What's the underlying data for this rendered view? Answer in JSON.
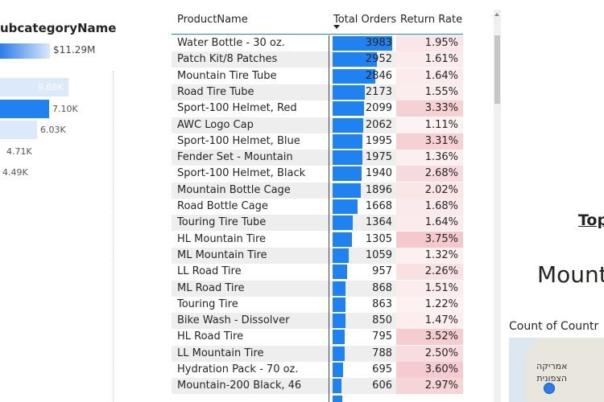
{
  "left_chart": {
    "title": "ubcategoryName",
    "total_label": "$11.29M",
    "bars": [
      {
        "value_label": "9.08K",
        "fill": 0.79,
        "light": true
      },
      {
        "value_label": "7.10K",
        "fill": 0.62,
        "light": false
      },
      {
        "value_label": "6.03K",
        "fill": 0.52,
        "light": true
      },
      {
        "value_label": "4.71K",
        "fill": 0.41,
        "light": false
      },
      {
        "value_label": "4.49K",
        "fill": 0.39,
        "light": false
      }
    ]
  },
  "table": {
    "headers": {
      "product": "ProductName",
      "orders": "Total Orders",
      "rate": "Return Rate"
    },
    "max_orders": 3983,
    "rows": [
      {
        "name": "Water Bottle - 30 oz.",
        "orders": "3983",
        "rate": "1.95%"
      },
      {
        "name": "Patch Kit/8 Patches",
        "orders": "2952",
        "rate": "1.61%"
      },
      {
        "name": "Mountain Tire Tube",
        "orders": "2846",
        "rate": "1.64%"
      },
      {
        "name": "Road Tire Tube",
        "orders": "2173",
        "rate": "1.55%"
      },
      {
        "name": "Sport-100 Helmet, Red",
        "orders": "2099",
        "rate": "3.33%"
      },
      {
        "name": "AWC Logo Cap",
        "orders": "2062",
        "rate": "1.11%"
      },
      {
        "name": "Sport-100 Helmet, Blue",
        "orders": "1995",
        "rate": "3.31%"
      },
      {
        "name": "Fender Set - Mountain",
        "orders": "1975",
        "rate": "1.36%"
      },
      {
        "name": "Sport-100 Helmet, Black",
        "orders": "1940",
        "rate": "2.68%"
      },
      {
        "name": "Mountain Bottle Cage",
        "orders": "1896",
        "rate": "2.02%"
      },
      {
        "name": "Road Bottle Cage",
        "orders": "1668",
        "rate": "1.68%"
      },
      {
        "name": "Touring Tire Tube",
        "orders": "1364",
        "rate": "1.64%"
      },
      {
        "name": "HL Mountain Tire",
        "orders": "1305",
        "rate": "3.75%"
      },
      {
        "name": "ML Mountain Tire",
        "orders": "1059",
        "rate": "1.32%"
      },
      {
        "name": "LL Road Tire",
        "orders": "957",
        "rate": "2.26%"
      },
      {
        "name": "ML Road Tire",
        "orders": "868",
        "rate": "1.51%"
      },
      {
        "name": "Touring Tire",
        "orders": "863",
        "rate": "1.22%"
      },
      {
        "name": "Bike Wash - Dissolver",
        "orders": "850",
        "rate": "1.47%"
      },
      {
        "name": "HL Road Tire",
        "orders": "795",
        "rate": "3.52%"
      },
      {
        "name": "LL Mountain Tire",
        "orders": "788",
        "rate": "2.50%"
      },
      {
        "name": "Hydration Pack - 70 oz.",
        "orders": "695",
        "rate": "3.60%"
      },
      {
        "name": "Mountain-200 Black, 46",
        "orders": "606",
        "rate": "2.97%"
      },
      {
        "name": "",
        "orders": "",
        "rate": ""
      }
    ]
  },
  "right_panel": {
    "top_label": "Top",
    "big_name": "Mount",
    "count_title": "Count of Countr",
    "map_label_line1": "אמריקה",
    "map_label_line2": "הצפונית"
  },
  "colors": {
    "accent": "#1f82f0",
    "heat_max": "#f3c9ce",
    "heat_min": "#fdf3f4"
  }
}
